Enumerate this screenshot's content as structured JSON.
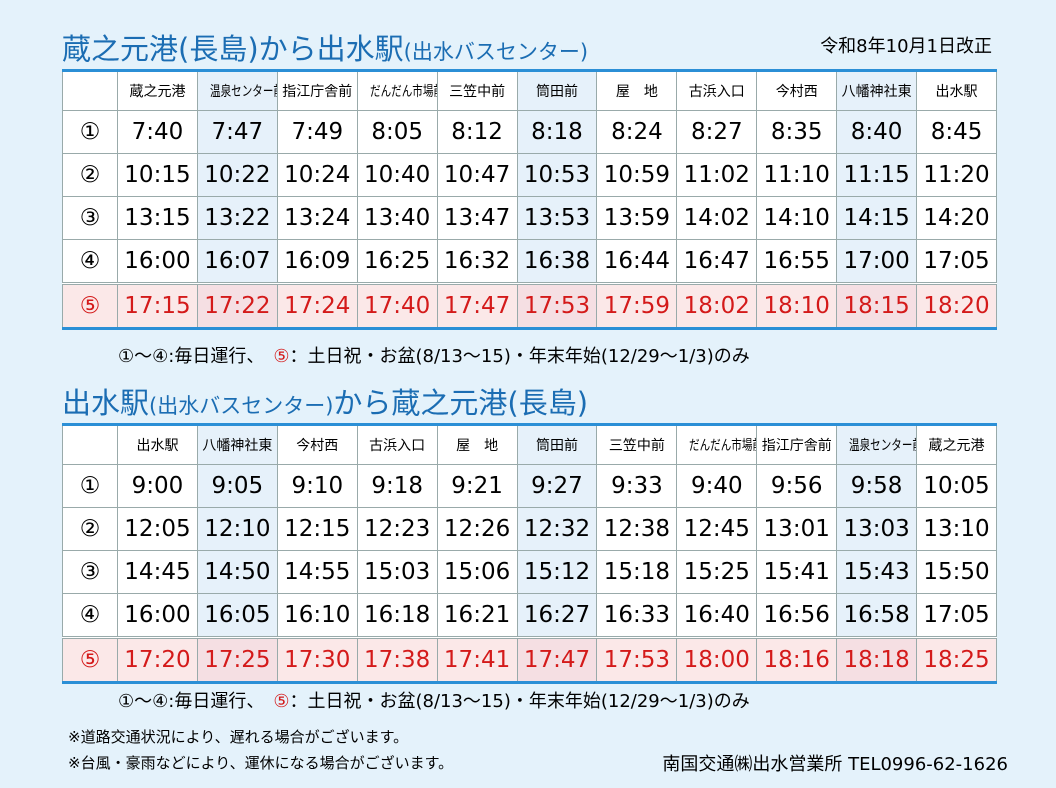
{
  "header": {
    "title": [
      "蔵之元港(長島)から出水駅",
      "(出水バスセンター)"
    ],
    "revised": "令和8年10月1日改正"
  },
  "timetables": [
    {
      "columns": [
        "蔵之元港",
        "温泉センター前",
        "指江庁舎前",
        "だんだん市場前",
        "三笠中前",
        "筒田前",
        "屋　地",
        "古浜入口",
        "今村西",
        "八幡神社東",
        "出水駅"
      ],
      "rows": [
        {
          "label": "①",
          "times": [
            "7:40",
            "7:47",
            "7:49",
            "8:05",
            "8:12",
            "8:18",
            "8:24",
            "8:27",
            "8:35",
            "8:40",
            "8:45"
          ]
        },
        {
          "label": "②",
          "times": [
            "10:15",
            "10:22",
            "10:24",
            "10:40",
            "10:47",
            "10:53",
            "10:59",
            "11:02",
            "11:10",
            "11:15",
            "11:20"
          ]
        },
        {
          "label": "③",
          "times": [
            "13:15",
            "13:22",
            "13:24",
            "13:40",
            "13:47",
            "13:53",
            "13:59",
            "14:02",
            "14:10",
            "14:15",
            "14:20"
          ]
        },
        {
          "label": "④",
          "times": [
            "16:00",
            "16:07",
            "16:09",
            "16:25",
            "16:32",
            "16:38",
            "16:44",
            "16:47",
            "16:55",
            "17:00",
            "17:05"
          ]
        },
        {
          "label": "⑤",
          "times": [
            "17:15",
            "17:22",
            "17:24",
            "17:40",
            "17:47",
            "17:53",
            "17:59",
            "18:02",
            "18:10",
            "18:15",
            "18:20"
          ]
        }
      ],
      "note": [
        "①～④:毎日運行、",
        "⑤",
        "：土日祝・お盆(8/13～15)・年末年始(12/29～1/3)のみ"
      ]
    },
    {
      "title": [
        "出水駅",
        "(出水バスセンター)",
        "から蔵之元港(長島)"
      ],
      "columns": [
        "出水駅",
        "八幡神社東",
        "今村西",
        "古浜入口",
        "屋　地",
        "筒田前",
        "三笠中前",
        "だんだん市場前",
        "指江庁舎前",
        "温泉センター前",
        "蔵之元港"
      ],
      "rows": [
        {
          "label": "①",
          "times": [
            "9:00",
            "9:05",
            "9:10",
            "9:18",
            "9:21",
            "9:27",
            "9:33",
            "9:40",
            "9:56",
            "9:58",
            "10:05"
          ]
        },
        {
          "label": "②",
          "times": [
            "12:05",
            "12:10",
            "12:15",
            "12:23",
            "12:26",
            "12:32",
            "12:38",
            "12:45",
            "13:01",
            "13:03",
            "13:10"
          ]
        },
        {
          "label": "③",
          "times": [
            "14:45",
            "14:50",
            "14:55",
            "15:03",
            "15:06",
            "15:12",
            "15:18",
            "15:25",
            "15:41",
            "15:43",
            "15:50"
          ]
        },
        {
          "label": "④",
          "times": [
            "16:00",
            "16:05",
            "16:10",
            "16:18",
            "16:21",
            "16:27",
            "16:33",
            "16:40",
            "16:56",
            "16:58",
            "17:05"
          ]
        },
        {
          "label": "⑤",
          "times": [
            "17:20",
            "17:25",
            "17:30",
            "17:38",
            "17:41",
            "17:47",
            "17:53",
            "18:00",
            "18:16",
            "18:18",
            "18:25"
          ]
        }
      ],
      "note": [
        "①～④:毎日運行、",
        "⑤",
        "：土日祝・お盆(8/13～15)・年末年始(12/29～1/3)のみ"
      ]
    }
  ],
  "footer": {
    "notes": [
      "※道路交通状況により、遅れる場合がございます。",
      "※台風・豪雨などにより、運休になる場合がございます。"
    ],
    "company": "南国交通㈱出水営業所 TEL0996-62-1626"
  }
}
